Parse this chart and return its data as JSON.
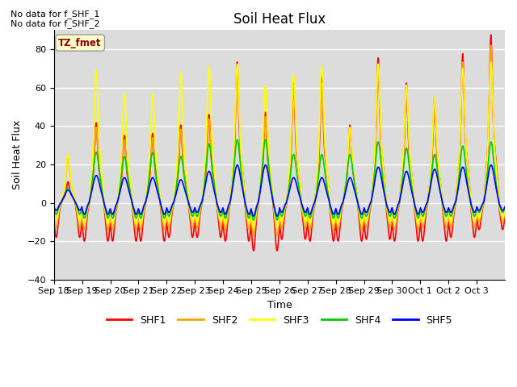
{
  "title": "Soil Heat Flux",
  "ylabel": "Soil Heat Flux",
  "xlabel": "Time",
  "note_line1": "No data for f_SHF_1",
  "note_line2": "No data for f_SHF_2",
  "box_label": "TZ_fmet",
  "ylim": [
    -40,
    90
  ],
  "yticks": [
    -40,
    -20,
    0,
    20,
    40,
    60,
    80
  ],
  "colors": {
    "SHF1": "#ff0000",
    "SHF2": "#ffa500",
    "SHF3": "#ffff00",
    "SHF4": "#00cc00",
    "SHF5": "#0000ff"
  },
  "legend_labels": [
    "SHF1",
    "SHF2",
    "SHF3",
    "SHF4",
    "SHF5"
  ],
  "xtick_labels": [
    "Sep 18",
    "Sep 19",
    "Sep 20",
    "Sep 21",
    "Sep 22",
    "Sep 23",
    "Sep 24",
    "Sep 25",
    "Sep 26",
    "Sep 27",
    "Sep 28",
    "Sep 29",
    "Sep 30",
    "Oct 1",
    "Oct 2",
    "Oct 3"
  ],
  "n_days": 16,
  "samples_per_day": 144,
  "background_color": "#dcdcdc",
  "title_fontsize": 12,
  "axis_label_fontsize": 9,
  "tick_fontsize": 8,
  "legend_fontsize": 9
}
